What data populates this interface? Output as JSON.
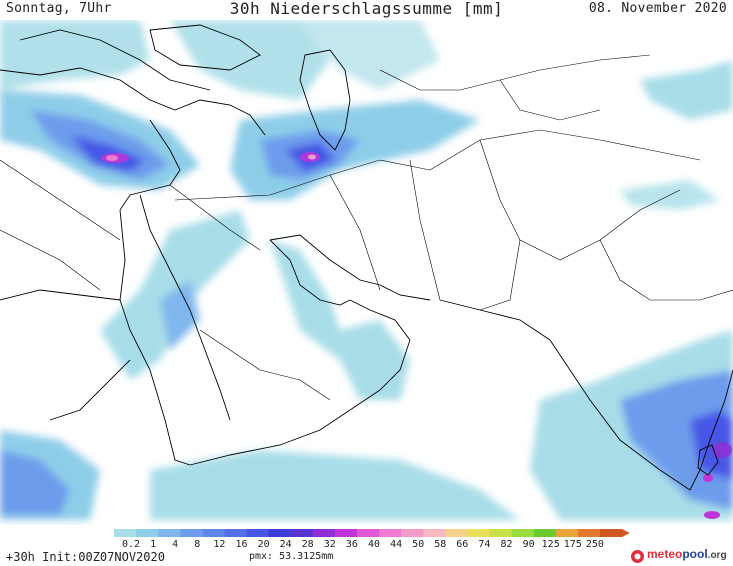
{
  "header": {
    "left": "Sonntag, 7Uhr",
    "title": "30h Niederschlagssumme [mm]",
    "right": "08. November 2020"
  },
  "legend": {
    "ticks": [
      "0.2",
      "1",
      "4",
      "8",
      "12",
      "16",
      "20",
      "24",
      "28",
      "32",
      "36",
      "40",
      "44",
      "50",
      "58",
      "66",
      "74",
      "82",
      "90",
      "125",
      "175",
      "250"
    ],
    "colors": [
      "#a8dde8",
      "#8ecde8",
      "#7fb6ec",
      "#6d9cec",
      "#5f84ea",
      "#5370e8",
      "#4656e6",
      "#3b3fd8",
      "#5a34d0",
      "#8f2ed4",
      "#c035d8",
      "#e058d8",
      "#f07ad0",
      "#f39cc7",
      "#f7b8c0",
      "#f4d48a",
      "#eae05a",
      "#c8e04a",
      "#98dc3e",
      "#6acb2e",
      "#e9a53a",
      "#e07a2e",
      "#d05822"
    ]
  },
  "footer": {
    "left": "+30h Init:00Z07NOV2020",
    "pmx": "pmx: 53.3125mm"
  },
  "logo": {
    "part1": "meteo",
    "part2": "pool",
    "part3": ".org"
  }
}
